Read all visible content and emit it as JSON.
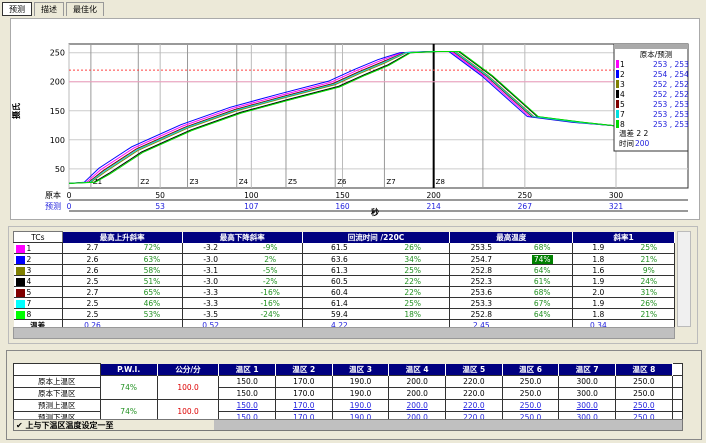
{
  "tabs": [
    "预测",
    "描述",
    "最佳化"
  ],
  "chart_data": {
    "type": "line",
    "ylabel": "摄氏",
    "xlabel": "秒",
    "ylim": [
      17,
      265
    ],
    "xlim": [
      0,
      300
    ],
    "yticks": [
      50,
      100,
      150,
      200,
      250
    ],
    "xticks": [
      0,
      50,
      100,
      150,
      200,
      250,
      300
    ],
    "x_rows": [
      {
        "label": "原本",
        "ticks": [
          "0",
          "50",
          "100",
          "150",
          "200",
          "250",
          "300"
        ]
      },
      {
        "label": "预测",
        "ticks": [
          "0",
          "53",
          "107",
          "160",
          "214",
          "267",
          "321"
        ]
      }
    ],
    "zones": [
      {
        "label": "Z1",
        "x": 12
      },
      {
        "label": "Z2",
        "x": 38
      },
      {
        "label": "Z3",
        "x": 65
      },
      {
        "label": "Z4",
        "x": 92
      },
      {
        "label": "Z5",
        "x": 119
      },
      {
        "label": "Z6",
        "x": 146
      },
      {
        "label": "Z7",
        "x": 173
      },
      {
        "label": "Z8",
        "x": 200
      }
    ],
    "extra_lines": [
      227
    ],
    "limit_lines": [
      {
        "y": 220,
        "color": "#ff4040",
        "style": "dotted"
      },
      {
        "y": 200,
        "color": "#f0a0c0",
        "style": "solid"
      }
    ],
    "cursor_x": 200,
    "series": [
      {
        "name": "1",
        "color": "#ff00ff",
        "offset": 4
      },
      {
        "name": "2",
        "color": "#0000ff",
        "offset": 6
      },
      {
        "name": "3",
        "color": "#808000",
        "offset": 0
      },
      {
        "name": "4",
        "color": "#000000",
        "offset": -3
      },
      {
        "name": "5",
        "color": "#800000",
        "offset": 2
      },
      {
        "name": "7",
        "color": "#00e0e0",
        "offset": 1
      },
      {
        "name": "8",
        "color": "#00dd00",
        "offset": -4
      }
    ],
    "profile": [
      [
        0,
        25
      ],
      [
        12,
        27
      ],
      [
        20,
        45
      ],
      [
        38,
        82
      ],
      [
        65,
        120
      ],
      [
        92,
        150
      ],
      [
        119,
        173
      ],
      [
        146,
        195
      ],
      [
        160,
        215
      ],
      [
        173,
        232
      ],
      [
        185,
        250
      ],
      [
        200,
        252
      ],
      [
        212,
        252
      ],
      [
        230,
        210
      ],
      [
        255,
        140
      ],
      [
        280,
        130
      ],
      [
        300,
        124
      ]
    ],
    "legend": {
      "title": "原本/预测",
      "rows": [
        [
          "1",
          "253 , 253"
        ],
        [
          "2",
          "254 , 254"
        ],
        [
          "3",
          "252 , 252"
        ],
        [
          "4",
          "252 , 252"
        ],
        [
          "5",
          "253 , 253"
        ],
        [
          "7",
          "253 , 253"
        ],
        [
          "8",
          "253 , 253"
        ]
      ],
      "diff_label": "温差",
      "diff": [
        "2",
        "2"
      ],
      "time_label": "时间",
      "time": "200"
    }
  },
  "stats": {
    "headers": [
      "TCs",
      "最高上升斜率",
      "最高下降斜率",
      "回流时间 /220C",
      "最高温度",
      "斜率1"
    ],
    "rows": [
      {
        "tc": "1",
        "color": "#ff00ff",
        "v": [
          "2.7",
          "72%",
          "-3.2",
          "-9%",
          "61.5",
          "26%",
          "253.5",
          "68%",
          "1.9",
          "25%"
        ]
      },
      {
        "tc": "2",
        "color": "#0000ff",
        "v": [
          "2.6",
          "63%",
          "-3.0",
          "2%",
          "63.6",
          "34%",
          "254.7",
          "74%",
          "1.8",
          "21%"
        ],
        "hi": 7
      },
      {
        "tc": "3",
        "color": "#808000",
        "v": [
          "2.6",
          "58%",
          "-3.1",
          "-5%",
          "61.3",
          "25%",
          "252.8",
          "64%",
          "1.6",
          "9%"
        ]
      },
      {
        "tc": "4",
        "color": "#000000",
        "v": [
          "2.5",
          "51%",
          "-3.0",
          "-2%",
          "60.5",
          "22%",
          "252.3",
          "61%",
          "1.9",
          "24%"
        ]
      },
      {
        "tc": "5",
        "color": "#800000",
        "v": [
          "2.7",
          "65%",
          "-3.3",
          "-16%",
          "60.4",
          "22%",
          "253.6",
          "68%",
          "2.0",
          "31%"
        ]
      },
      {
        "tc": "7",
        "color": "#00ffff",
        "v": [
          "2.5",
          "46%",
          "-3.3",
          "-16%",
          "61.4",
          "25%",
          "253.3",
          "67%",
          "1.9",
          "26%"
        ]
      },
      {
        "tc": "8",
        "color": "#00ff00",
        "v": [
          "2.5",
          "53%",
          "-3.5",
          "-24%",
          "59.4",
          "18%",
          "252.8",
          "64%",
          "1.8",
          "21%"
        ]
      }
    ],
    "diff_label": "温差",
    "diff": [
      "0.26",
      "0.52",
      "4.22",
      "2.45",
      "0.34"
    ]
  },
  "zones_table": {
    "headers": [
      "P.W.I.",
      "公分/分",
      "温区 1",
      "温区 2",
      "温区 3",
      "温区 4",
      "温区 5",
      "温区 6",
      "温区 7",
      "温区 8"
    ],
    "row_labels": [
      "原本上温区",
      "原本下温区",
      "预测上温区",
      "预测下温区"
    ],
    "pwi": [
      "74%",
      "74%"
    ],
    "speed": [
      "100.0",
      "100.0"
    ],
    "values": [
      "150.0",
      "170.0",
      "190.0",
      "200.0",
      "220.0",
      "250.0",
      "300.0",
      "250.0"
    ],
    "checkbox_label": "上与下温区温度设定一至",
    "checked": true
  }
}
